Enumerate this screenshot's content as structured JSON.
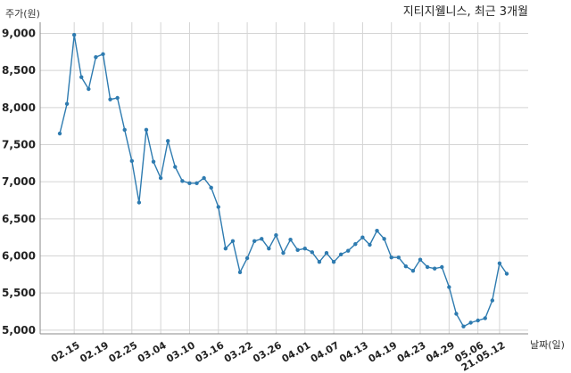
{
  "chart_data": {
    "type": "line",
    "title": "지티지웰니스, 최근 3개월",
    "ylabel": "주가(원)",
    "xlabel": "날짜(일)",
    "ylim": [
      4950,
      9150
    ],
    "yticks": [
      "5,000",
      "5,500",
      "6,000",
      "6,500",
      "7,000",
      "7,500",
      "8,000",
      "8,500",
      "9,000"
    ],
    "ytick_values": [
      5000,
      5500,
      6000,
      6500,
      7000,
      7500,
      8000,
      8500,
      9000
    ],
    "xticks": [
      "02.15",
      "02.19",
      "02.25",
      "03.04",
      "03.10",
      "03.16",
      "03.22",
      "03.26",
      "04.01",
      "04.07",
      "04.13",
      "04.19",
      "04.23",
      "04.29",
      "05.06",
      "21.05.12"
    ],
    "xtick_index": [
      2,
      6,
      10,
      14,
      18,
      22,
      26,
      30,
      34,
      38,
      42,
      46,
      50,
      54,
      58,
      61
    ],
    "line_color": "#2e7bb0",
    "grid": true,
    "series": [
      {
        "values": [
          7650,
          8050,
          8980,
          8410,
          8250,
          8680,
          8720,
          8110,
          8130,
          7700,
          7280,
          6720,
          7700,
          7270,
          7050,
          7550,
          7200,
          7010,
          6980,
          6980,
          7050,
          6920,
          6660,
          6100,
          6200,
          5780,
          5970,
          6200,
          6230,
          6100,
          6280,
          6040,
          6220,
          6080,
          6100,
          6050,
          5920,
          6040,
          5920,
          6020,
          6070,
          6160,
          6250,
          6150,
          6340,
          6230,
          5980,
          5980,
          5860,
          5800,
          5950,
          5850,
          5830,
          5850,
          5580,
          5220,
          5050,
          5100,
          5130,
          5160,
          5400,
          5900,
          5760
        ]
      }
    ]
  }
}
